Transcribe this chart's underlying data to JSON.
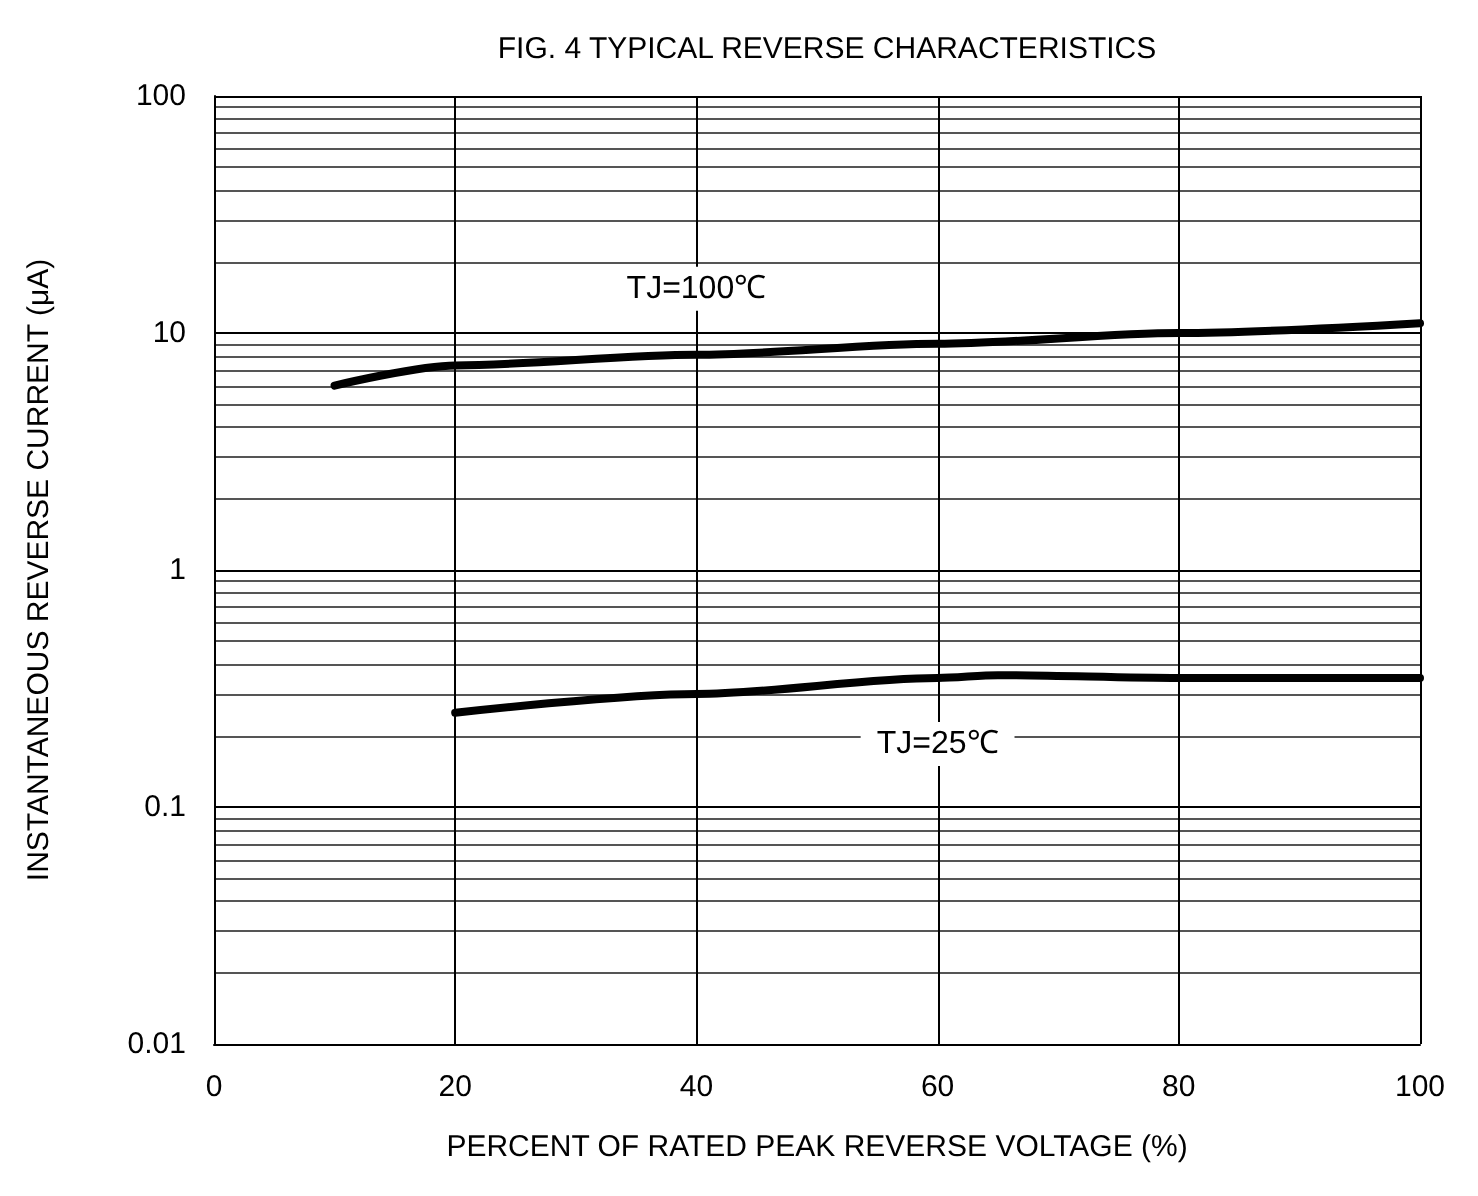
{
  "chart_data": {
    "type": "line",
    "title": "FIG. 4 TYPICAL REVERSE CHARACTERISTICS",
    "xlabel": "PERCENT OF RATED PEAK REVERSE VOLTAGE (%)",
    "ylabel": "INSTANTANEOUS REVERSE CURRENT (μA)",
    "series": [
      {
        "name": "TJ=100℃",
        "color": "#000000",
        "x": [
          10,
          20,
          40,
          60,
          80,
          100
        ],
        "values": [
          6.0,
          7.3,
          8.1,
          9.0,
          10,
          11
        ]
      },
      {
        "name": "TJ=25℃",
        "color": "#000000",
        "x": [
          20,
          40,
          60,
          65,
          80,
          100
        ],
        "values": [
          0.25,
          0.3,
          0.35,
          0.36,
          0.35,
          0.35
        ]
      }
    ],
    "xlim": [
      0,
      100
    ],
    "xticks": [
      0,
      20,
      40,
      60,
      80,
      100
    ],
    "ylim": [
      0.01,
      100
    ],
    "yticks": [
      0.01,
      0.1,
      1,
      10,
      100
    ],
    "log": "y",
    "grid": true,
    "marker": "none",
    "line_style": "solid"
  }
}
